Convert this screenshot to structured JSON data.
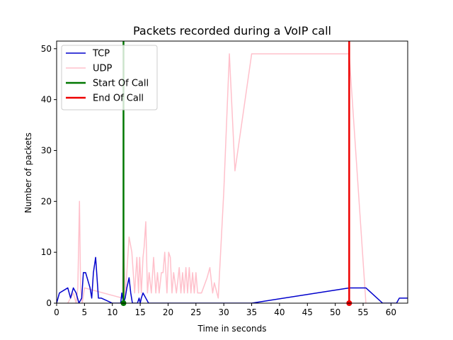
{
  "chart_data": {
    "type": "line",
    "title": "Packets recorded during a VoIP call",
    "xlabel": "Time in seconds",
    "ylabel": "Number of packets",
    "xlim": [
      0,
      63
    ],
    "ylim": [
      0,
      51.5
    ],
    "xticks": [
      0,
      5,
      10,
      15,
      20,
      25,
      30,
      35,
      40,
      45,
      50,
      55,
      60
    ],
    "yticks": [
      0,
      10,
      20,
      30,
      40,
      50
    ],
    "grid": false,
    "legend_position": "top-left",
    "series": [
      {
        "name": "TCP",
        "color": "#0000cc",
        "x": [
          0,
          0.5,
          2,
          2.5,
          3,
          3.5,
          4,
          4.5,
          4.8,
          5.2,
          6,
          6.3,
          6.6,
          7,
          7.5,
          8,
          10,
          11.5,
          11.7,
          12,
          12.3,
          12.6,
          13,
          13.3,
          13.6,
          14,
          14.5,
          14.8,
          15,
          15.2,
          15.5,
          16,
          16.5,
          20,
          30,
          35,
          52.5,
          55.5,
          58.5,
          61,
          61.5,
          63
        ],
        "y": [
          0,
          2,
          3,
          1,
          3,
          2,
          0,
          1,
          6,
          6,
          3,
          1,
          6,
          9,
          1,
          1,
          0,
          0,
          2,
          0,
          1,
          3,
          5,
          2,
          0,
          0,
          0,
          1,
          0,
          1,
          2,
          1,
          0,
          0,
          0,
          0,
          3,
          3,
          0,
          0,
          1,
          1
        ]
      },
      {
        "name": "UDP",
        "color": "#ffc0cb",
        "x": [
          2,
          2.5,
          3,
          3.5,
          3.8,
          4.1,
          4.3,
          4.6,
          5,
          11.8,
          12,
          12.3,
          12.6,
          13,
          13.5,
          14,
          14.4,
          14.7,
          14.9,
          15.2,
          15.5,
          15.7,
          16,
          16.3,
          16.6,
          17,
          17.4,
          17.8,
          18.1,
          18.4,
          18.8,
          19.1,
          19.4,
          19.8,
          20.1,
          20.4,
          20.7,
          21,
          21.5,
          22,
          22.3,
          22.6,
          22.9,
          23.2,
          23.5,
          23.8,
          24.1,
          24.4,
          24.7,
          25,
          25.3,
          25.6,
          26,
          27,
          27.5,
          28,
          28.3,
          29,
          30,
          31,
          32,
          35,
          52.5,
          55.5
        ],
        "y": [
          0,
          1,
          2,
          0,
          3,
          20,
          3,
          0,
          3,
          1,
          15,
          1,
          6,
          13,
          10,
          2,
          9,
          2,
          9,
          2,
          9,
          11,
          16,
          2,
          6,
          2,
          9,
          2,
          6,
          2,
          6,
          6,
          10,
          2,
          10,
          9,
          2,
          6,
          2,
          7,
          2,
          6,
          2,
          7,
          2,
          7,
          2,
          6,
          2,
          6,
          2,
          2,
          2,
          5,
          7,
          2,
          4,
          1,
          22,
          49,
          26,
          49,
          49,
          0
        ]
      }
    ],
    "vlines": [
      {
        "name": "Start Of Call",
        "color": "#007700",
        "x": 12
      },
      {
        "name": "End Of Call",
        "color": "#ee0000",
        "x": 52.5
      }
    ]
  }
}
